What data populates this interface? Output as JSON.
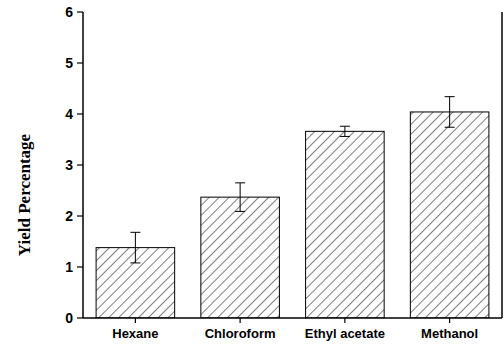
{
  "chart_data": {
    "type": "bar",
    "y_label": "Yield Percentage",
    "categories": [
      "Hexane",
      "Chloroform",
      "Ethyl acetate",
      "Methanol"
    ],
    "values": [
      1.38,
      2.37,
      3.66,
      4.04
    ],
    "errors": [
      0.3,
      0.28,
      0.1,
      0.3
    ],
    "color": "#000000",
    "ylim": [
      0,
      6
    ],
    "yticks": [
      0,
      1,
      2,
      3,
      4,
      5,
      6
    ],
    "grid": false
  }
}
